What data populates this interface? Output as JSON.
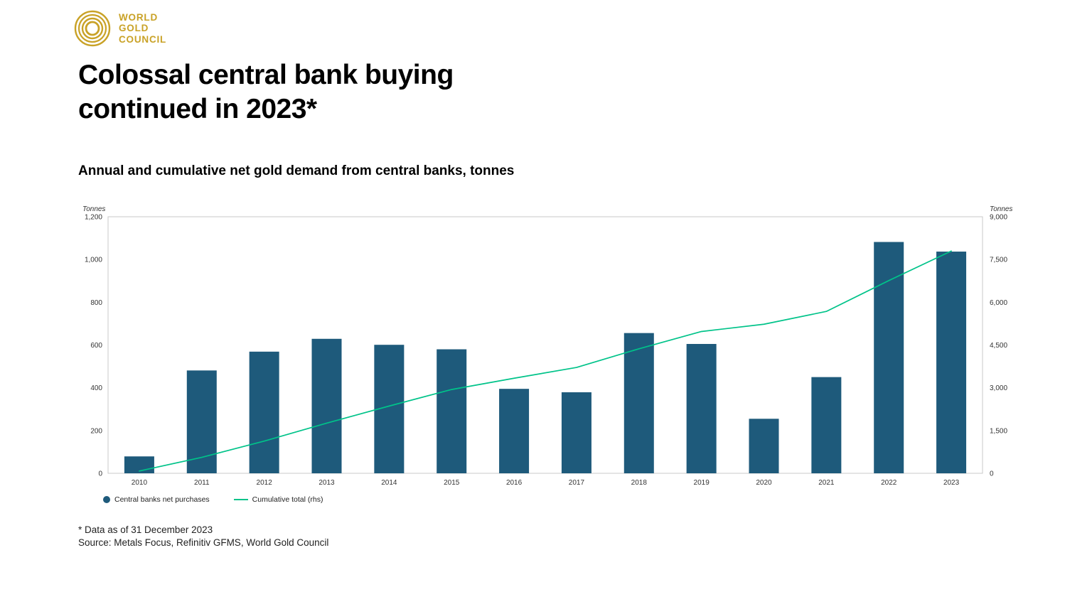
{
  "brand": {
    "name_line1": "WORLD",
    "name_line2": "GOLD",
    "name_line3": "COUNCIL",
    "color": "#C9A227"
  },
  "header": {
    "title_line1": "Colossal central bank buying",
    "title_line2": "continued in 2023*",
    "subtitle": "Annual and cumulative net gold demand from central banks, tonnes"
  },
  "chart_data": {
    "type": "bar+line",
    "categories": [
      "2010",
      "2011",
      "2012",
      "2013",
      "2014",
      "2015",
      "2016",
      "2017",
      "2018",
      "2019",
      "2020",
      "2021",
      "2022",
      "2023"
    ],
    "series": [
      {
        "name": "Central banks net purchases",
        "type": "bar",
        "axis": "left",
        "color": "#1E5A7B",
        "values": [
          79,
          481,
          569,
          629,
          601,
          580,
          395,
          379,
          656,
          605,
          255,
          450,
          1082,
          1037
        ]
      },
      {
        "name": "Cumulative total (rhs)",
        "type": "line",
        "axis": "right",
        "color": "#00C389",
        "values": [
          79,
          560,
          1129,
          1758,
          2359,
          2939,
          3334,
          3713,
          4369,
          4974,
          5229,
          5679,
          6761,
          7798
        ]
      }
    ],
    "left_axis": {
      "label": "Tonnes",
      "min": 0,
      "max": 1200,
      "ticks": [
        0,
        200,
        400,
        600,
        800,
        1000,
        1200
      ]
    },
    "right_axis": {
      "label": "Tonnes",
      "min": 0,
      "max": 9000,
      "ticks": [
        0,
        1500,
        3000,
        4500,
        6000,
        7500,
        9000
      ]
    },
    "grid": false,
    "legend_position": "bottom-left"
  },
  "footer": {
    "note": "* Data as of 31 December 2023",
    "source": "Source: Metals Focus, Refinitiv GFMS, World Gold Council"
  }
}
